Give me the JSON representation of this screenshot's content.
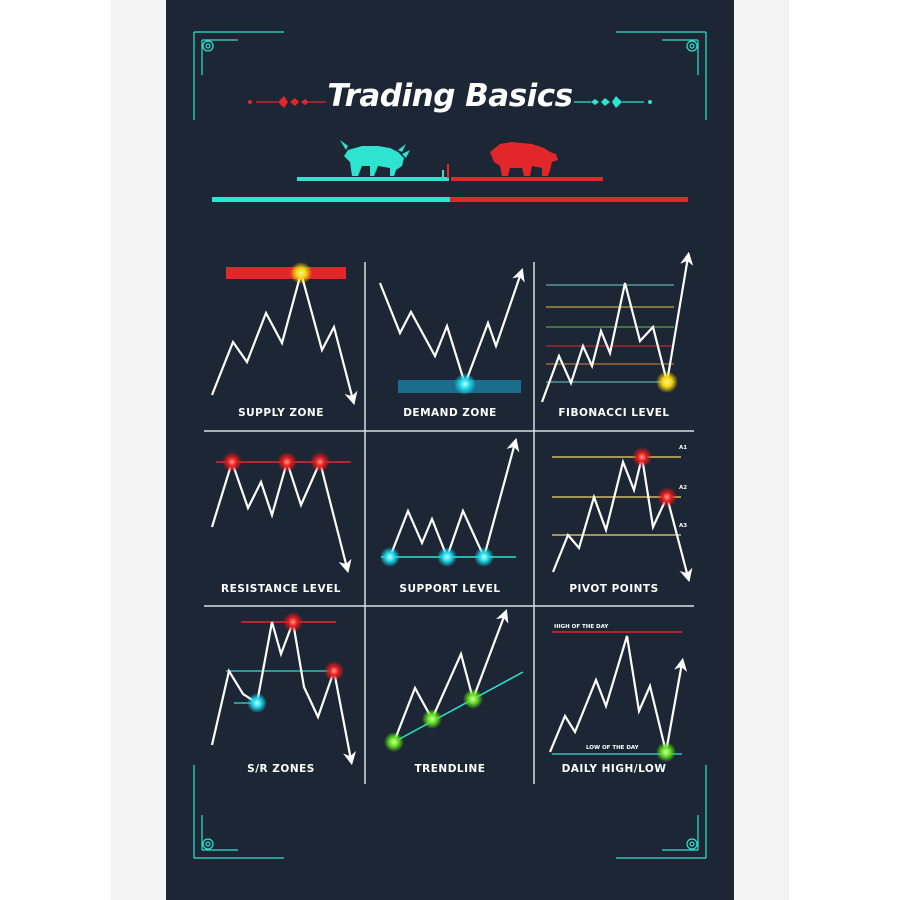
{
  "poster": {
    "title": "Trading Basics",
    "colors": {
      "background": "#1c2634",
      "bull": "#2ee3d0",
      "bear": "#e3262a",
      "frame": "#2ee3d0",
      "line": "#ffffff"
    }
  },
  "panels": [
    {
      "id": "supply-zone",
      "label": "SUPPLY ZONE"
    },
    {
      "id": "demand-zone",
      "label": "DEMAND ZONE"
    },
    {
      "id": "fibonacci-level",
      "label": "FIBONACCI LEVEL"
    },
    {
      "id": "resistance-level",
      "label": "RESISTANCE LEVEL"
    },
    {
      "id": "support-level",
      "label": "SUPPORT LEVEL"
    },
    {
      "id": "pivot-points",
      "label": "PIVOT POINTS"
    },
    {
      "id": "sr-zones",
      "label": "S/R ZONES"
    },
    {
      "id": "trendline",
      "label": "TRENDLINE"
    },
    {
      "id": "daily-high-low",
      "label": "DAILY HIGH/LOW"
    }
  ],
  "annotations": {
    "pivot_a1": "A1",
    "pivot_a2": "A2",
    "pivot_a3": "A3",
    "high_of_day": "HIGH OF THE DAY",
    "low_of_day": "LOW OF THE DAY"
  },
  "icons": [
    "bull-icon",
    "bear-icon",
    "corner-ornament-icon"
  ]
}
